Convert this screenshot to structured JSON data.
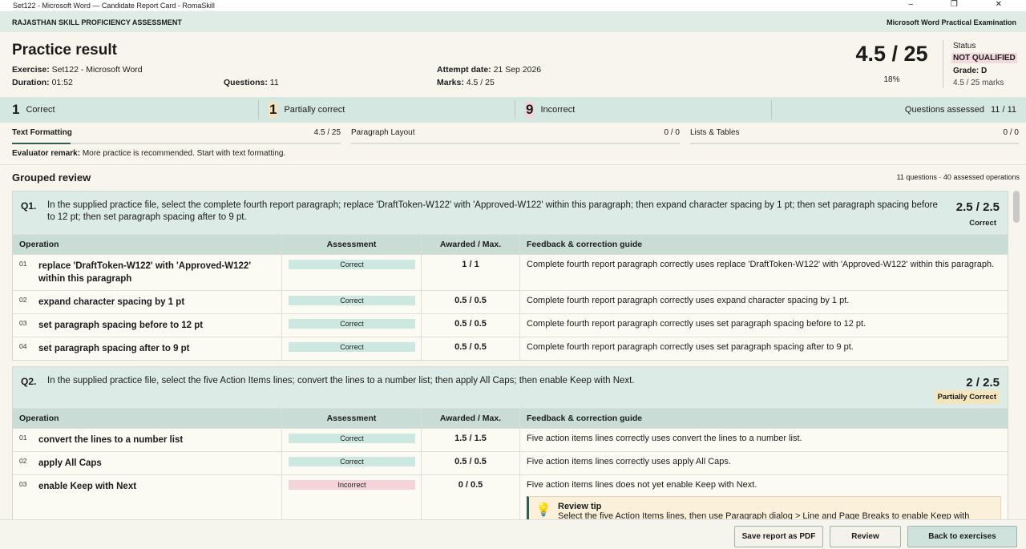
{
  "window": {
    "title": "Set122 - Microsoft Word — Candidate Report Card - RomaSkill"
  },
  "header": {
    "org": "RAJASTHAN SKILL PROFICIENCY ASSESSMENT",
    "exam": "Microsoft Word Practical Examination"
  },
  "summary": {
    "title": "Practice result",
    "fields": [
      {
        "label": "Exercise:",
        "value": "Set122 - Microsoft Word"
      },
      {
        "label": "Duration:",
        "value": "01:52"
      },
      {
        "label": "Questions:",
        "value": "11"
      },
      {
        "label": "Attempt date:",
        "value": "21 Sep 2026"
      },
      {
        "label": "Marks:",
        "value": "4.5 / 25"
      }
    ],
    "score": "4.5 / 25",
    "percent": "18%",
    "status_label": "Status",
    "status": "NOT QUALIFIED",
    "grade": "Grade: D",
    "marks": "4.5 / 25 marks"
  },
  "counts": [
    {
      "number": "1",
      "label": "Correct"
    },
    {
      "number": "1",
      "label": "Partially correct"
    },
    {
      "number": "9",
      "label": "Incorrect"
    }
  ],
  "assessed": {
    "label": "Questions assessed",
    "value": "11 / 11"
  },
  "sections": [
    {
      "name": "Text Formatting",
      "score": "4.5 / 25"
    },
    {
      "name": "Paragraph Layout",
      "score": "0 / 0"
    },
    {
      "name": "Lists & Tables",
      "score": "0 / 0"
    }
  ],
  "remark": {
    "label": "Evaluator remark:",
    "text": "More practice is recommended. Start with text formatting."
  },
  "review": {
    "title": "Grouped review",
    "meta": "11 questions · 40 assessed operations",
    "columns": [
      "Operation",
      "Assessment",
      "Awarded / Max.",
      "Feedback & correction guide"
    ],
    "questions": [
      {
        "number": "Q1.",
        "text": "In the supplied practice file, select the complete fourth report paragraph; replace 'DraftToken-W122' with 'Approved-W122' within this paragraph; then expand character spacing by 1 pt; then set paragraph spacing before to 12 pt; then set paragraph spacing after to 9 pt.",
        "score": "2.5 / 2.5",
        "status": "Correct",
        "operations": [
          {
            "n": "01",
            "op": "replace 'DraftToken-W122' with 'Approved-W122' within this paragraph",
            "assessment": "Correct",
            "awarded": "1 / 1",
            "feedback": "Complete fourth report paragraph correctly uses replace 'DraftToken-W122' with 'Approved-W122' within this paragraph."
          },
          {
            "n": "02",
            "op": "expand character spacing by 1 pt",
            "assessment": "Correct",
            "awarded": "0.5 / 0.5",
            "feedback": "Complete fourth report paragraph correctly uses expand character spacing by 1 pt."
          },
          {
            "n": "03",
            "op": "set paragraph spacing before to 12 pt",
            "assessment": "Correct",
            "awarded": "0.5 / 0.5",
            "feedback": "Complete fourth report paragraph correctly uses set paragraph spacing before to 12 pt."
          },
          {
            "n": "04",
            "op": "set paragraph spacing after to 9 pt",
            "assessment": "Correct",
            "awarded": "0.5 / 0.5",
            "feedback": "Complete fourth report paragraph correctly uses set paragraph spacing after to 9 pt."
          }
        ]
      },
      {
        "number": "Q2.",
        "text": "In the supplied practice file, select the five Action Items lines; convert the lines to a number list; then apply All Caps; then enable Keep with Next.",
        "score": "2 / 2.5",
        "status": "Partially Correct",
        "operations": [
          {
            "n": "01",
            "op": "convert the lines to a number list",
            "assessment": "Correct",
            "awarded": "1.5 / 1.5",
            "feedback": "Five action items lines correctly uses convert the lines to a number list."
          },
          {
            "n": "02",
            "op": "apply All Caps",
            "assessment": "Correct",
            "awarded": "0.5 / 0.5",
            "feedback": "Five action items lines correctly uses apply All Caps."
          },
          {
            "n": "03",
            "op": "enable Keep with Next",
            "assessment": "Incorrect",
            "awarded": "0 / 0.5",
            "feedback": "Five action items lines does not yet enable Keep with Next.",
            "tip": {
              "title": "Review tip",
              "text": "Select the five Action Items lines, then use Paragraph dialog > Line and Page Breaks to enable Keep with"
            }
          }
        ]
      }
    ]
  },
  "footer": {
    "buttons": [
      "Save report as PDF",
      "Review",
      "Back to exercises"
    ]
  }
}
